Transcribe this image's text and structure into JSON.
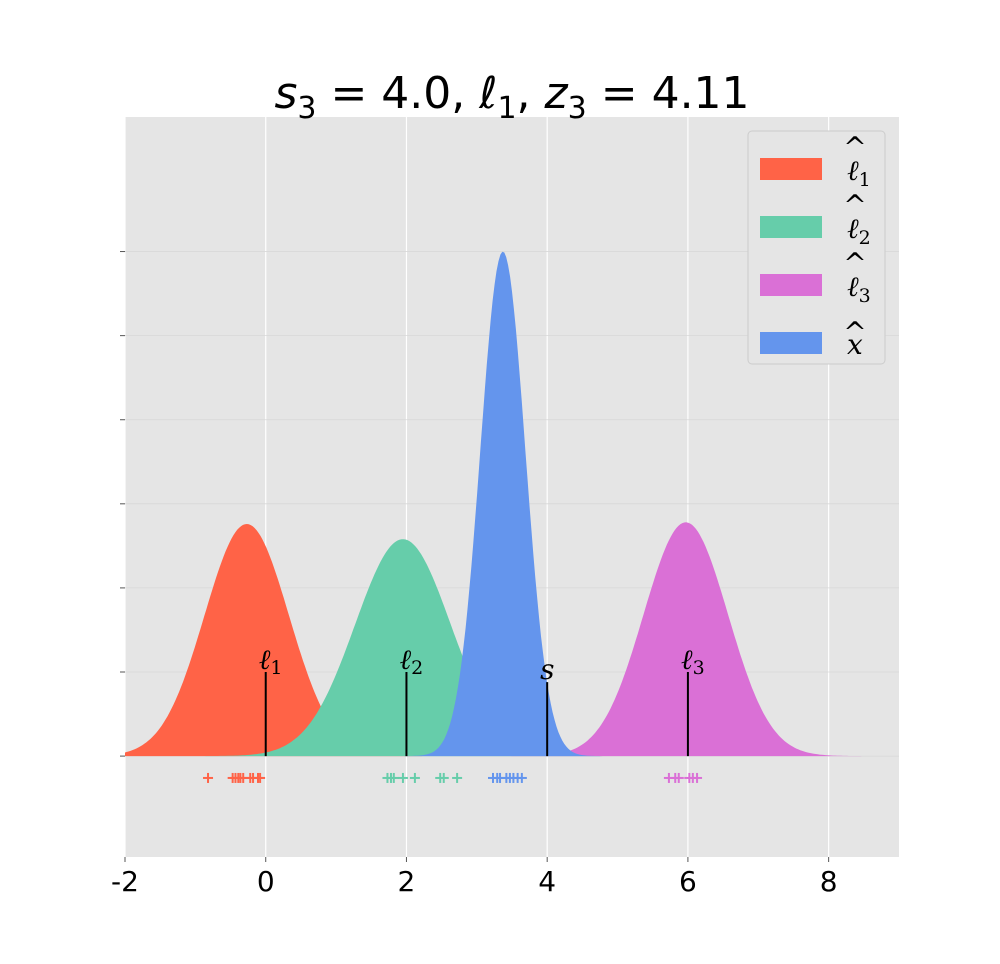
{
  "chart_data": {
    "type": "area",
    "title_parts": [
      {
        "t": "s",
        "italic": true
      },
      {
        "t": "3",
        "sub": true
      },
      {
        "t": " = 4.0, "
      },
      {
        "t": "ℓ",
        "italic": true
      },
      {
        "t": "1",
        "sub": true
      },
      {
        "t": ", "
      },
      {
        "t": "z",
        "italic": true
      },
      {
        "t": "3",
        "sub": true
      },
      {
        "t": " = 4.11"
      }
    ],
    "xlim": [
      -2,
      9
    ],
    "ylim": [
      -0.6,
      3.8
    ],
    "x_ticks": [
      -2,
      0,
      2,
      4,
      6,
      8
    ],
    "x_tick_labels": [
      "-2",
      "0",
      "2",
      "4",
      "6",
      "8"
    ],
    "y_ticks": [
      0,
      0.5,
      1.0,
      1.5,
      2.0,
      2.5,
      3.0
    ],
    "grid": true,
    "legend_position": "top-right",
    "series": [
      {
        "name": "ℓ̂₁",
        "legend_base": "ℓ",
        "legend_sub": "1",
        "mean": -0.27,
        "sd": 0.6,
        "peak": 1.38,
        "color": "#ff6347",
        "samples": [
          -0.82,
          -0.47,
          -0.43,
          -0.39,
          -0.36,
          -0.32,
          -0.22,
          -0.18,
          -0.11,
          -0.08
        ]
      },
      {
        "name": "ℓ̂₂",
        "legend_base": "ℓ",
        "legend_sub": "2",
        "mean": 1.95,
        "sd": 0.68,
        "peak": 1.29,
        "color": "#66cdaa",
        "samples": [
          1.73,
          1.78,
          1.82,
          1.95,
          2.12,
          2.48,
          2.53,
          2.72
        ]
      },
      {
        "name": "x̂",
        "legend_base": "x",
        "legend_sub": "",
        "mean": 3.37,
        "sd": 0.32,
        "peak": 3.0,
        "color": "#6495ed",
        "samples": [
          3.23,
          3.29,
          3.33,
          3.42,
          3.47,
          3.52,
          3.58,
          3.64
        ]
      },
      {
        "name": "ℓ̂₃",
        "legend_base": "ℓ",
        "legend_sub": "3",
        "mean": 5.97,
        "sd": 0.6,
        "peak": 1.39,
        "color": "#da70d6",
        "samples": [
          5.73,
          5.82,
          5.87,
          6.02,
          6.07,
          6.13
        ]
      }
    ],
    "draw_order": [
      0,
      1,
      3,
      2
    ],
    "legend_order": [
      0,
      1,
      3,
      2
    ],
    "markers": [
      {
        "x": 0,
        "height": 0.5,
        "base": "ℓ",
        "sub": "1"
      },
      {
        "x": 2,
        "height": 0.5,
        "base": "ℓ",
        "sub": "2"
      },
      {
        "x": 4,
        "height": 0.44,
        "base": "s",
        "sub": ""
      },
      {
        "x": 6,
        "height": 0.5,
        "base": "ℓ",
        "sub": "3"
      }
    ],
    "sample_y": -0.13,
    "colors": {
      "plot_bg": "#e5e5e5",
      "grid": "#ffffff",
      "marker_line": "#000000"
    }
  }
}
